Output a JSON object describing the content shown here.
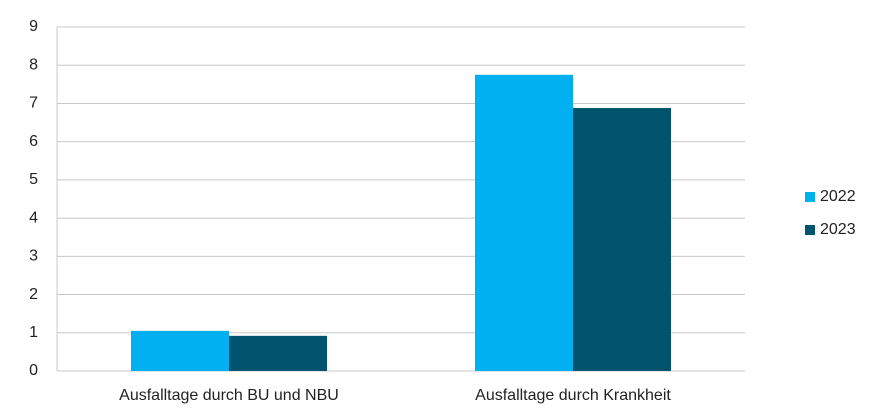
{
  "chart_data": {
    "type": "bar",
    "categories": [
      "Ausfalltage durch BU und NBU",
      "Ausfalltage durch Krankheit"
    ],
    "series": [
      {
        "name": "2022",
        "color": "#00b0f0",
        "values": [
          1.05,
          7.75
        ]
      },
      {
        "name": "2023",
        "color": "#00546e",
        "values": [
          0.92,
          6.88
        ]
      }
    ],
    "ylim": [
      0,
      9
    ],
    "yticks": [
      0,
      1,
      2,
      3,
      4,
      5,
      6,
      7,
      8,
      9
    ],
    "grid": true,
    "legend": "right"
  }
}
